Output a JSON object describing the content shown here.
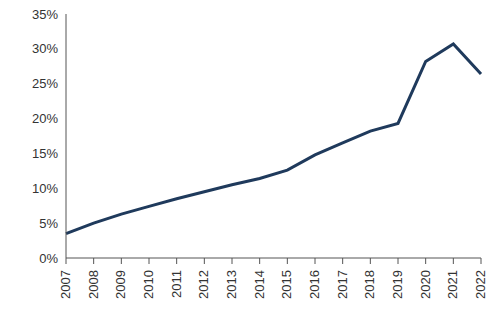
{
  "chart_data": {
    "type": "line",
    "categories": [
      "2007",
      "2008",
      "2009",
      "2010",
      "2011",
      "2012",
      "2013",
      "2014",
      "2015",
      "2016",
      "2017",
      "2018",
      "2019",
      "2020",
      "2021",
      "2022"
    ],
    "values": [
      3.5,
      5,
      6.3,
      7.4,
      8.5,
      9.5,
      10.5,
      11.4,
      12.6,
      14.8,
      16.5,
      18.2,
      19.3,
      28.2,
      30.7,
      26.4
    ],
    "color": "#1f3a5c",
    "ylim": [
      0,
      35
    ],
    "yticks": [
      {
        "value": 0,
        "label": "0%"
      },
      {
        "value": 5,
        "label": "5%"
      },
      {
        "value": 10,
        "label": "10%"
      },
      {
        "value": 15,
        "label": "15%"
      },
      {
        "value": 20,
        "label": "20%"
      },
      {
        "value": 25,
        "label": "25%"
      },
      {
        "value": 30,
        "label": "30%"
      },
      {
        "value": 35,
        "label": "35%"
      }
    ],
    "grid": false
  }
}
